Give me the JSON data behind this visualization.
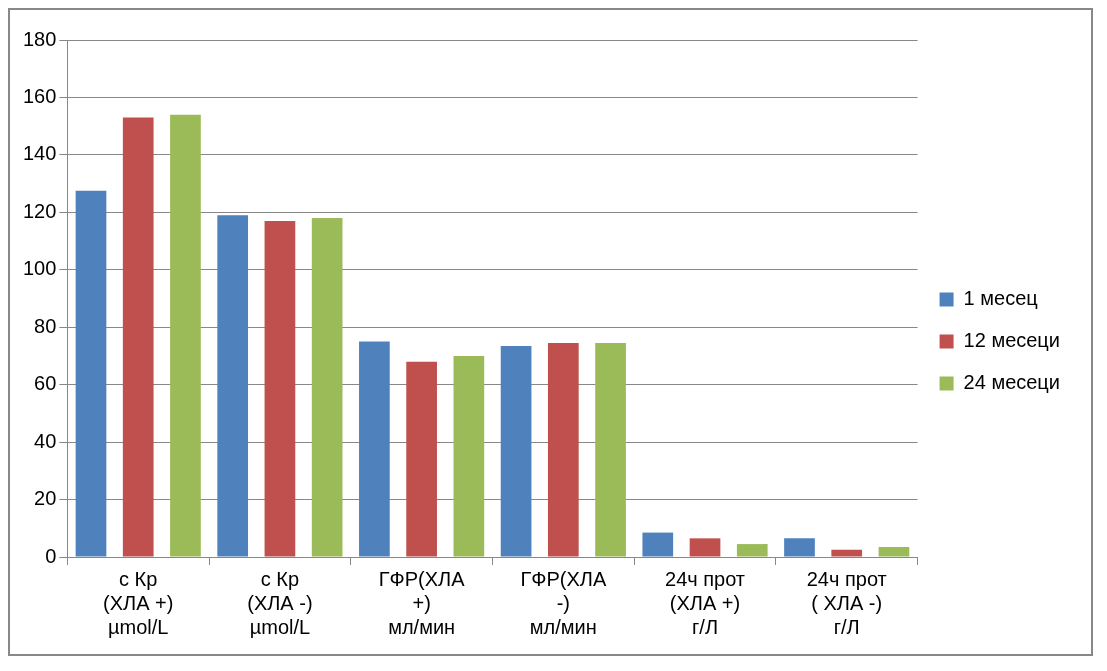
{
  "chart_data": {
    "type": "bar",
    "categories": [
      "с Кр\n(ХЛА +)\nµmol/L",
      "с Кр\n(ХЛА -)\nµmol/L",
      "ГФР(ХЛА\n+)\nмл/мин",
      "ГФР(ХЛА\n-)\nмл/мин",
      "24ч прот\n(ХЛА +)\nг/Л",
      "24ч прот\n( ХЛА -)\nг/Л"
    ],
    "series": [
      {
        "name": "1 месец",
        "color": "#4f81bd",
        "values": [
          127.5,
          119,
          75,
          73.5,
          8.5,
          6.5
        ]
      },
      {
        "name": "12 месеци",
        "color": "#c0504d",
        "values": [
          153,
          117,
          68,
          74.5,
          6.5,
          2.5
        ]
      },
      {
        "name": "24 месеци",
        "color": "#9bbb59",
        "values": [
          154,
          118,
          70,
          74.5,
          4.5,
          3.5
        ]
      }
    ],
    "ylim": [
      0,
      180
    ],
    "yticks": [
      0,
      20,
      40,
      60,
      80,
      100,
      120,
      140,
      160,
      180
    ],
    "grid": "y",
    "legend": "right"
  }
}
